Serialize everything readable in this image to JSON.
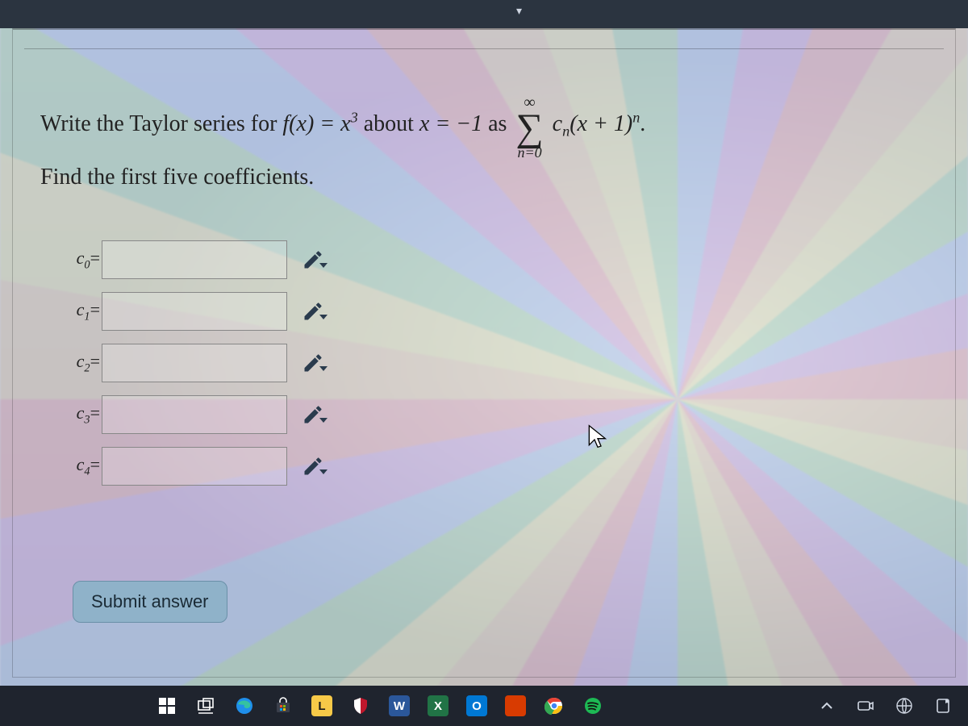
{
  "question": {
    "line1_pre": "Write the Taylor series for ",
    "fx": "f(x) = x",
    "fx_exp": "3",
    "about": " about ",
    "xeq": "x = −1",
    "as": " as ",
    "sum_top": "∞",
    "sum_bot": "n=0",
    "term_cn": "c",
    "term_cn_sub": "n",
    "term_paren": "(x + 1)",
    "term_exp": "n",
    "period": ".",
    "line2": "Find the first five coefficients."
  },
  "coefficients": [
    {
      "label_base": "c",
      "label_sub": "0",
      "eq": "=",
      "value": ""
    },
    {
      "label_base": "c",
      "label_sub": "1",
      "eq": "=",
      "value": ""
    },
    {
      "label_base": "c",
      "label_sub": "2",
      "eq": "=",
      "value": ""
    },
    {
      "label_base": "c",
      "label_sub": "3",
      "eq": "=",
      "value": ""
    },
    {
      "label_base": "c",
      "label_sub": "4",
      "eq": "=",
      "value": ""
    }
  ],
  "submit_label": "Submit answer",
  "taskbar": {
    "apps": [
      {
        "name": "start",
        "kind": "start"
      },
      {
        "name": "task-view",
        "kind": "taskview"
      },
      {
        "name": "edge",
        "kind": "edge"
      },
      {
        "name": "store",
        "kind": "store"
      },
      {
        "name": "app-l",
        "kind": "letter",
        "letter": "L",
        "bg": "#f7c948",
        "fg": "#1a1a1a"
      },
      {
        "name": "mcafee",
        "kind": "shield"
      },
      {
        "name": "word",
        "kind": "letter",
        "letter": "W",
        "bg": "#2b579a",
        "fg": "#ffffff"
      },
      {
        "name": "excel",
        "kind": "letter",
        "letter": "X",
        "bg": "#217346",
        "fg": "#ffffff"
      },
      {
        "name": "outlook",
        "kind": "letter",
        "letter": "O",
        "bg": "#0078d4",
        "fg": "#ffffff"
      },
      {
        "name": "app-square",
        "kind": "square",
        "bg": "#d83b01"
      },
      {
        "name": "chrome",
        "kind": "chrome"
      },
      {
        "name": "spotify",
        "kind": "spotify"
      }
    ],
    "tray": [
      {
        "name": "tray-up",
        "kind": "chevron-up"
      },
      {
        "name": "tray-camera",
        "kind": "camera"
      },
      {
        "name": "tray-globe",
        "kind": "globe"
      },
      {
        "name": "tray-note",
        "kind": "note"
      }
    ]
  },
  "colors": {
    "submit_bg": "#8fb2c9",
    "submit_border": "#6a90a8",
    "taskbar_bg": "#1f242e"
  }
}
